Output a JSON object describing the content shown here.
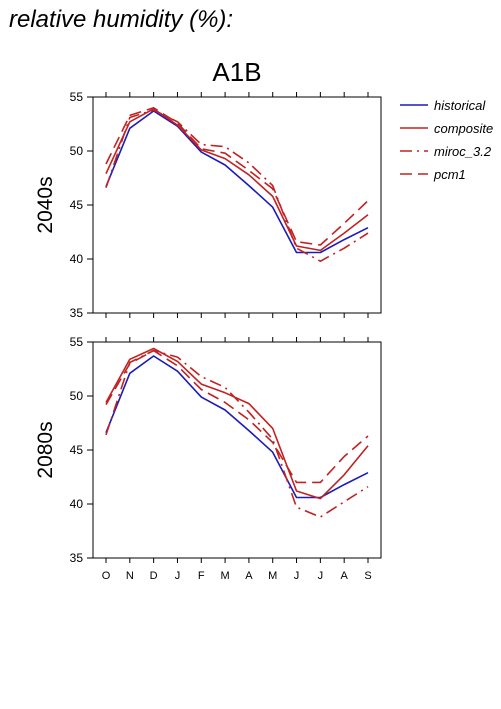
{
  "figure_title": "relative humidity (%):",
  "chart_data": {
    "type": "line",
    "scenario_title": "A1B",
    "categories": [
      "O",
      "N",
      "D",
      "J",
      "F",
      "M",
      "A",
      "M",
      "J",
      "J",
      "A",
      "S"
    ],
    "legend": {
      "placement": "right",
      "entries": [
        {
          "name": "historical",
          "color": "#1c1cb8",
          "dash": "solid"
        },
        {
          "name": "composite",
          "color": "#c02222",
          "dash": "solid"
        },
        {
          "name": "miroc_3.2",
          "color": "#c02222",
          "dash": "dashdot"
        },
        {
          "name": "pcm1",
          "color": "#c02222",
          "dash": "dashed"
        }
      ]
    },
    "panels": [
      {
        "ylabel": "2040s",
        "ylim": [
          35,
          55
        ],
        "yticks": [
          35,
          40,
          45,
          50,
          55
        ],
        "series": [
          {
            "name": "historical",
            "values": [
              46.7,
              52.1,
              53.7,
              52.3,
              49.9,
              48.7,
              46.8,
              44.8,
              40.6,
              40.6,
              41.8,
              42.9
            ]
          },
          {
            "name": "composite",
            "values": [
              47.9,
              52.7,
              53.9,
              52.4,
              50.1,
              49.3,
              47.8,
              45.8,
              41.2,
              40.8,
              42.4,
              44.1
            ]
          },
          {
            "name": "miroc_3.2",
            "values": [
              46.6,
              53.1,
              53.8,
              52.7,
              50.6,
              50.4,
              48.9,
              46.8,
              41.0,
              39.8,
              41.0,
              42.4
            ]
          },
          {
            "name": "pcm1",
            "values": [
              48.8,
              53.3,
              54.0,
              52.6,
              50.2,
              49.8,
              48.2,
              46.5,
              41.6,
              41.3,
              43.3,
              45.4
            ]
          }
        ]
      },
      {
        "ylabel": "2080s",
        "ylim": [
          35,
          55
        ],
        "yticks": [
          35,
          40,
          45,
          50,
          55
        ],
        "xticks_shown": true,
        "series": [
          {
            "name": "historical",
            "values": [
              46.6,
              52.1,
              53.7,
              52.3,
              49.9,
              48.7,
              46.8,
              44.8,
              40.6,
              40.6,
              41.8,
              42.9
            ]
          },
          {
            "name": "composite",
            "values": [
              49.4,
              53.4,
              54.4,
              53.2,
              51.1,
              50.3,
              49.3,
              47.0,
              41.2,
              40.5,
              42.7,
              45.4
            ]
          },
          {
            "name": "miroc_3.2",
            "values": [
              46.4,
              53.1,
              54.2,
              53.6,
              51.8,
              50.8,
              48.5,
              46.0,
              39.7,
              38.8,
              40.2,
              41.6
            ]
          },
          {
            "name": "pcm1",
            "values": [
              49.2,
              53.0,
              54.2,
              52.8,
              50.6,
              49.4,
              47.8,
              45.7,
              42.0,
              42.0,
              44.4,
              46.3
            ]
          }
        ]
      }
    ]
  }
}
